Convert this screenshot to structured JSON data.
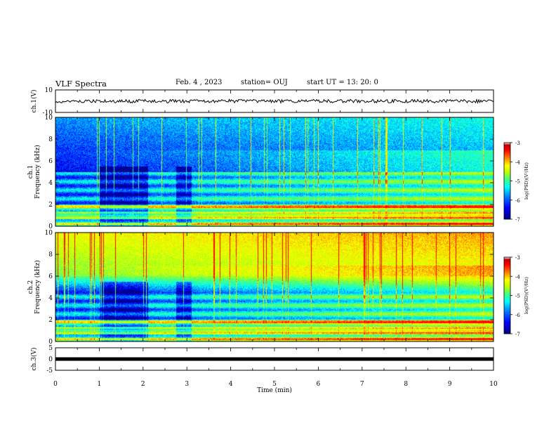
{
  "header": {
    "title": "VLF Spectra",
    "date": "Feb. 4 , 2023",
    "station": "station= OUJ",
    "start": "start UT = 13: 20: 0"
  },
  "chart_data": {
    "type": "heatmap",
    "xlabel": "Time (min)",
    "xlim": [
      0,
      10
    ],
    "x_ticks": [
      "0",
      "1",
      "2",
      "3",
      "4",
      "5",
      "6",
      "7",
      "8",
      "9",
      "10"
    ],
    "panels": [
      {
        "name": "ch1-waveform",
        "ylabel": "ch.1(V)",
        "ylim": [
          -10,
          10
        ],
        "y_ticks": [
          "10",
          "-10"
        ],
        "trace_level": 0
      },
      {
        "name": "ch1-spectrogram",
        "ylabel": "ch.1\nFrequency (kHz)",
        "ylim": [
          0,
          10
        ],
        "y_ticks": [
          "0",
          "2",
          "4",
          "6",
          "8",
          "10"
        ]
      },
      {
        "name": "ch2-spectrogram",
        "ylabel": "ch.2\nFrequency (kHz)",
        "ylim": [
          0,
          10
        ],
        "y_ticks": [
          "0",
          "2",
          "4",
          "6",
          "8",
          "10"
        ]
      },
      {
        "name": "ch3-trace",
        "ylabel": "ch.3(V)",
        "ylim": [
          -5,
          5
        ],
        "y_ticks": [
          "5",
          "0",
          "-5"
        ],
        "trace_level": 0
      }
    ],
    "colorbar": {
      "label": "log(PSD)(V²/Hz)",
      "range": [
        -7,
        -3
      ],
      "ticks": [
        "-3",
        "-4",
        "-5",
        "-6",
        "-7"
      ],
      "colors": [
        "#00007f",
        "#0000ff",
        "#0080ff",
        "#00ffff",
        "#40ff80",
        "#c0ff00",
        "#ffff00",
        "#ff8000",
        "#ff0000",
        "#c00000",
        "#ffffff"
      ]
    }
  }
}
